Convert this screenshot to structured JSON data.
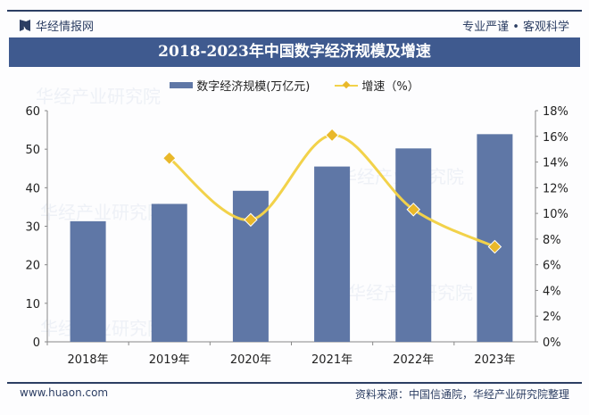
{
  "header": {
    "brand": "华经情报网",
    "slogan": "专业严谨 • 客观科学"
  },
  "footer": {
    "site": "www.huaon.com",
    "source": "资料来源：中国信通院，华经产业研究院整理"
  },
  "watermark": "华经产业研究院",
  "colors": {
    "bar": "#5f77a6",
    "line": "#f2d24a",
    "marker": "#e9b82a",
    "banner": "#3f5a8f"
  },
  "chart_data": {
    "type": "bar+line",
    "title": "2018-2023年中国数字经济规模及增速",
    "categories": [
      "2018年",
      "2019年",
      "2020年",
      "2021年",
      "2022年",
      "2023年"
    ],
    "series": [
      {
        "name": "数字经济规模(万亿元)",
        "type": "bar",
        "axis": "left",
        "values": [
          31.3,
          35.8,
          39.2,
          45.5,
          50.2,
          53.9
        ]
      },
      {
        "name": "增速（%）",
        "type": "line",
        "smooth": true,
        "axis": "right",
        "values": [
          null,
          14.3,
          9.5,
          16.1,
          10.3,
          7.4
        ]
      }
    ],
    "ylim_left": [
      0,
      60
    ],
    "yticks_left": [
      "0",
      "10",
      "20",
      "30",
      "40",
      "50",
      "60"
    ],
    "ylim_right": [
      0,
      18
    ],
    "yticks_right": [
      "0%",
      "2%",
      "4%",
      "6%",
      "8%",
      "10%",
      "12%",
      "14%",
      "16%",
      "18%"
    ],
    "legend": "top",
    "grid": false
  }
}
